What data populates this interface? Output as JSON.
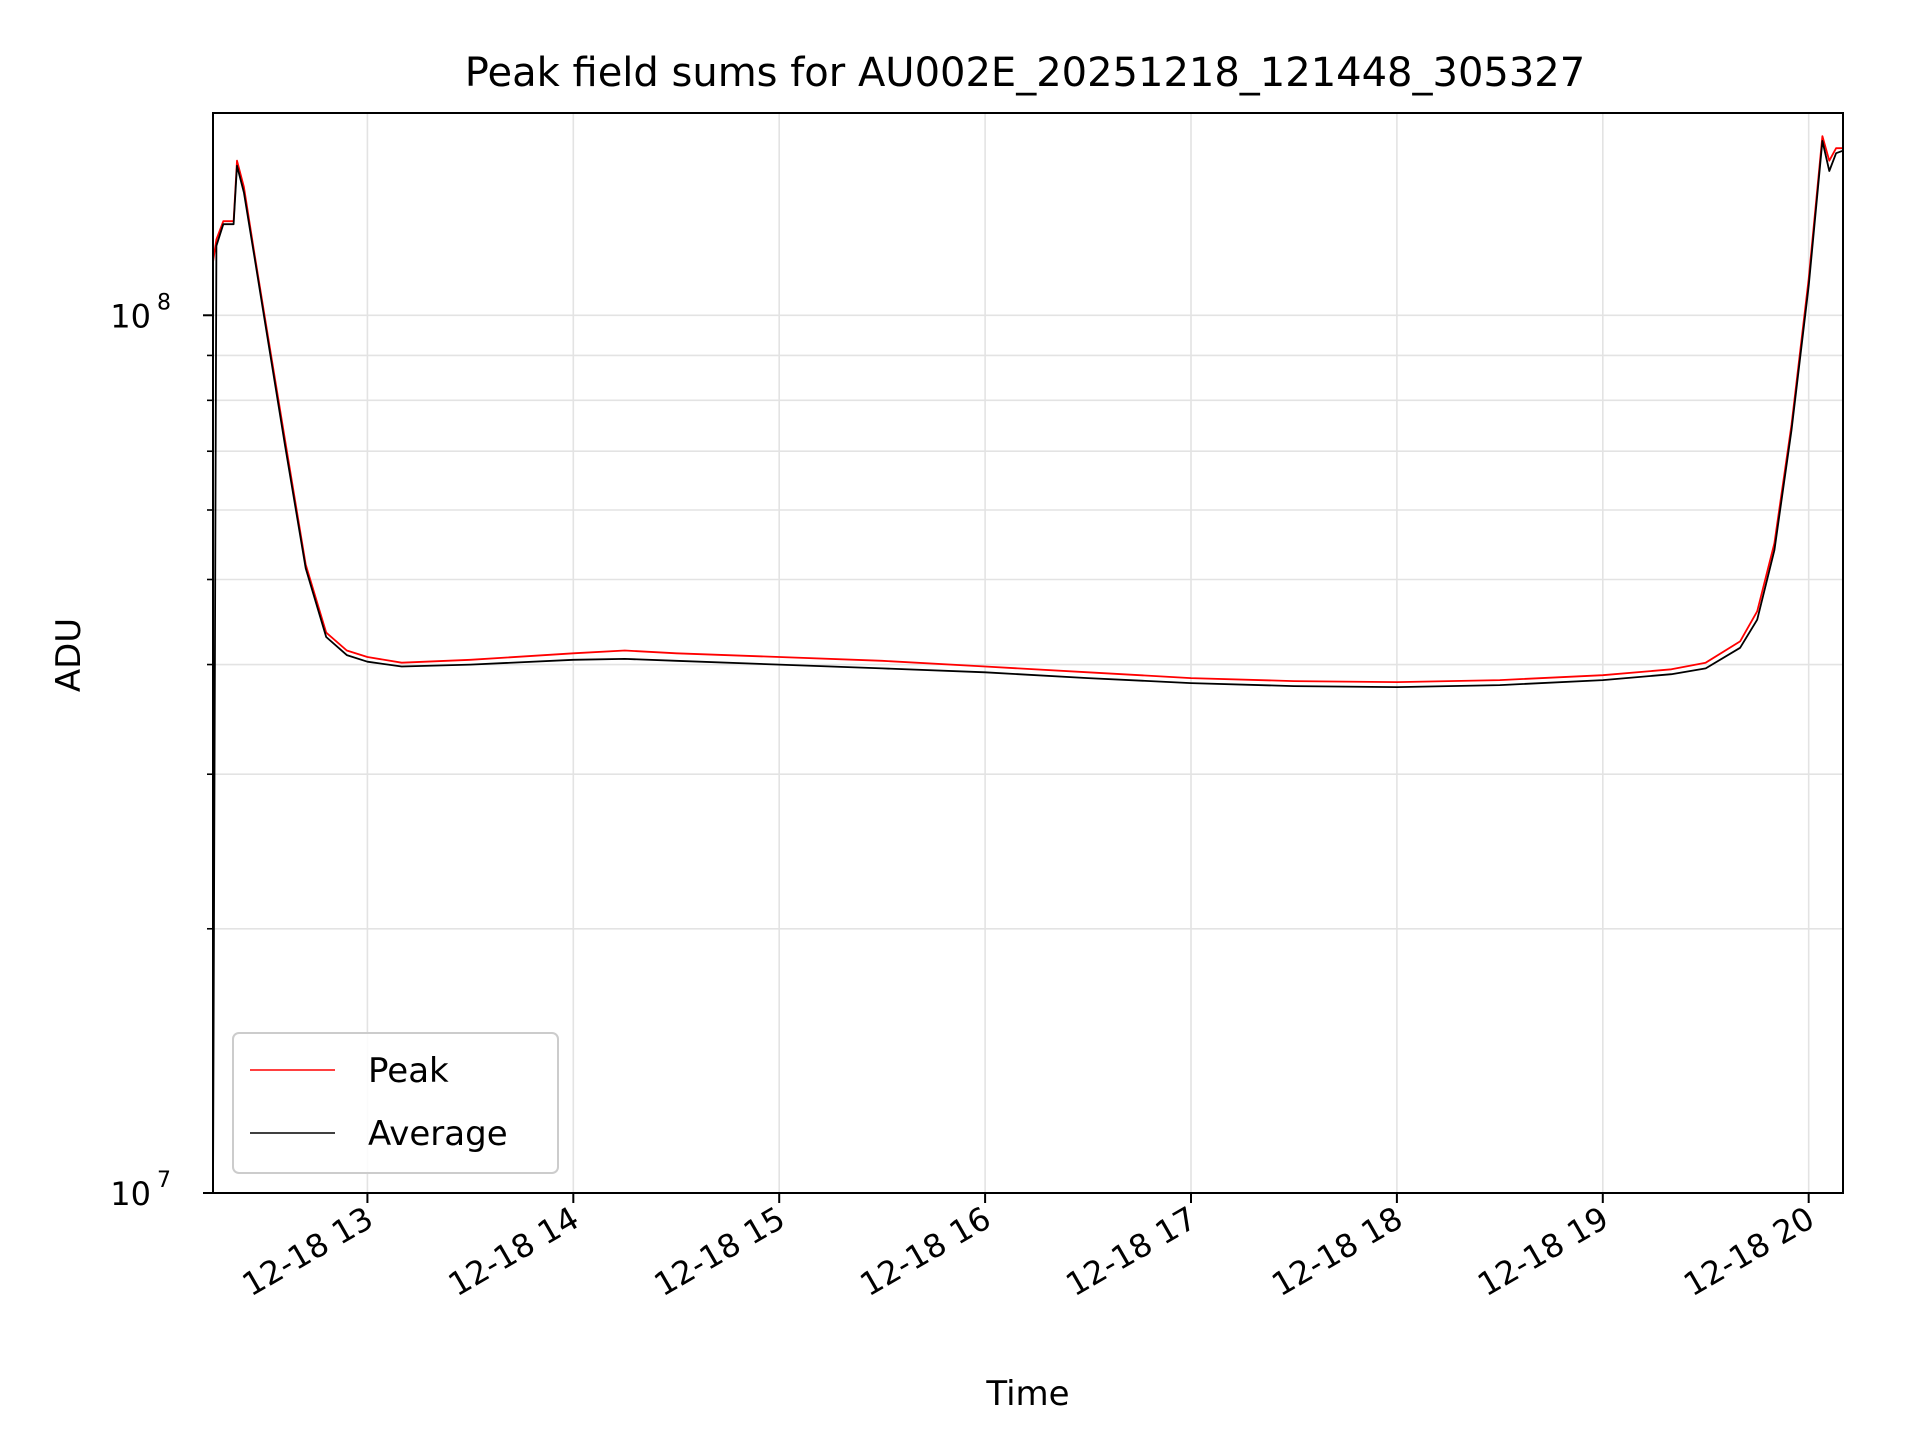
{
  "chart_data": {
    "type": "line",
    "title": "Peak field sums for AU002E_20251218_121448_305327",
    "xlabel": "Time",
    "ylabel": "ADU",
    "y_scale": "log",
    "ylim": [
      10000000,
      170000000
    ],
    "xlim": [
      "12-18 12:15",
      "12-18 20:10"
    ],
    "x_ticks": [
      "12-18 13",
      "12-18 14",
      "12-18 15",
      "12-18 16",
      "12-18 17",
      "12-18 18",
      "12-18 19",
      "12-18 20"
    ],
    "y_ticks": [
      {
        "value": 10000000,
        "base": "10",
        "exp": "7"
      },
      {
        "value": 100000000,
        "base": "10",
        "exp": "8"
      }
    ],
    "grid": true,
    "legend_position": "lower-left",
    "series": [
      {
        "name": "Peak",
        "color": "#ff0000",
        "x": [
          "12-18 12:15",
          "12-18 12:16",
          "12-18 12:18",
          "12-18 12:21",
          "12-18 12:22",
          "12-18 12:24",
          "12-18 12:27",
          "12-18 12:30",
          "12-18 12:36",
          "12-18 12:42",
          "12-18 12:48",
          "12-18 12:54",
          "12-18 13:00",
          "12-18 13:10",
          "12-18 13:30",
          "12-18 14:00",
          "12-18 14:15",
          "12-18 14:30",
          "12-18 15:00",
          "12-18 15:30",
          "12-18 16:00",
          "12-18 16:30",
          "12-18 17:00",
          "12-18 17:30",
          "12-18 18:00",
          "12-18 18:30",
          "12-18 19:00",
          "12-18 19:20",
          "12-18 19:30",
          "12-18 19:40",
          "12-18 19:45",
          "12-18 19:50",
          "12-18 19:55",
          "12-18 20:00",
          "12-18 20:04",
          "12-18 20:06",
          "12-18 20:08",
          "12-18 20:10"
        ],
        "values": [
          115000000,
          122000000,
          128000000,
          128000000,
          150000000,
          140000000,
          118000000,
          100000000,
          72000000,
          52000000,
          43500000,
          41500000,
          40800000,
          40200000,
          40500000,
          41200000,
          41500000,
          41200000,
          40800000,
          40400000,
          39800000,
          39200000,
          38600000,
          38300000,
          38200000,
          38400000,
          38900000,
          39500000,
          40200000,
          42500000,
          46000000,
          55000000,
          75000000,
          110000000,
          160000000,
          150000000,
          155000000,
          155000000
        ]
      },
      {
        "name": "Average",
        "color": "#000000",
        "x": [
          "12-18 12:15",
          "12-18 12:16",
          "12-18 12:18",
          "12-18 12:21",
          "12-18 12:22",
          "12-18 12:24",
          "12-18 12:27",
          "12-18 12:30",
          "12-18 12:36",
          "12-18 12:42",
          "12-18 12:48",
          "12-18 12:54",
          "12-18 13:00",
          "12-18 13:10",
          "12-18 13:30",
          "12-18 14:00",
          "12-18 14:15",
          "12-18 14:30",
          "12-18 15:00",
          "12-18 15:30",
          "12-18 16:00",
          "12-18 16:30",
          "12-18 17:00",
          "12-18 17:30",
          "12-18 18:00",
          "12-18 18:30",
          "12-18 19:00",
          "12-18 19:20",
          "12-18 19:30",
          "12-18 19:40",
          "12-18 19:45",
          "12-18 19:50",
          "12-18 19:55",
          "12-18 20:00",
          "12-18 20:04",
          "12-18 20:06",
          "12-18 20:08",
          "12-18 20:10"
        ],
        "values": [
          10000000,
          120000000,
          127000000,
          127000000,
          148000000,
          138000000,
          117000000,
          99000000,
          71000000,
          51500000,
          43000000,
          41000000,
          40300000,
          39800000,
          40000000,
          40500000,
          40600000,
          40400000,
          40000000,
          39600000,
          39200000,
          38600000,
          38100000,
          37800000,
          37700000,
          37900000,
          38400000,
          39000000,
          39600000,
          41800000,
          45000000,
          54000000,
          74000000,
          108000000,
          158000000,
          146000000,
          153000000,
          154000000
        ]
      }
    ]
  }
}
